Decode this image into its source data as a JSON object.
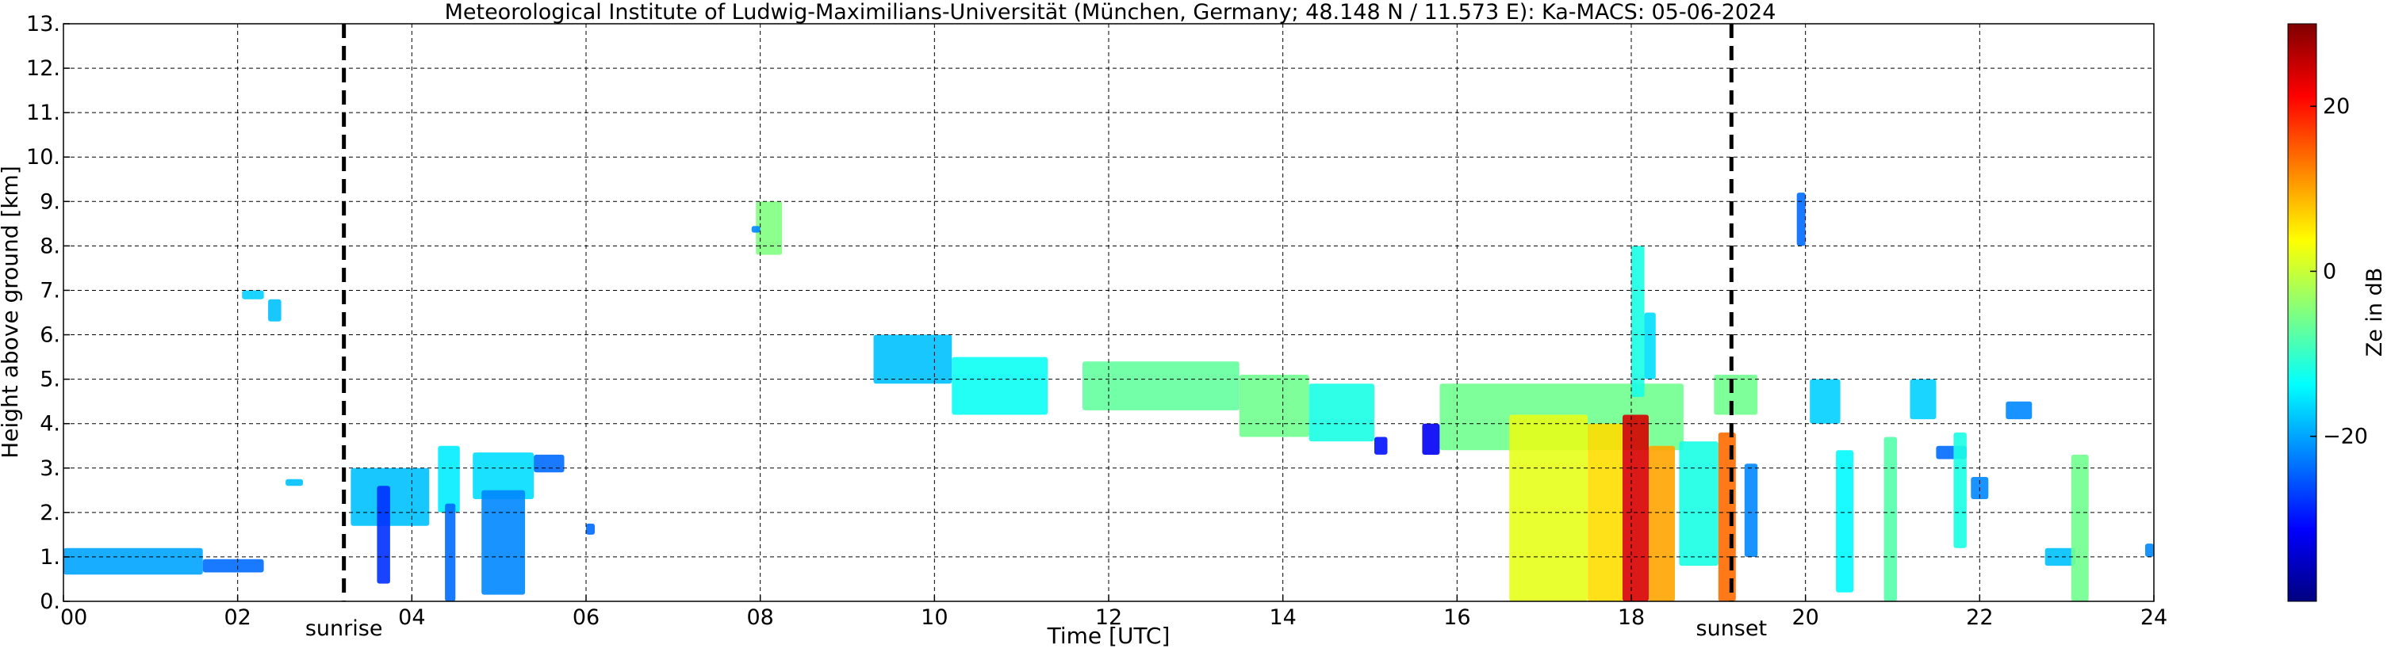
{
  "chart_data": {
    "type": "heatmap",
    "title": "Meteorological Institute of Ludwig-Maximilians-Universität (München, Germany; 48.148 N / 11.573 E):    Ka-MACS: 05-06-2024",
    "xlabel": "Time [UTC]",
    "ylabel": "Height above ground [km]",
    "xlim": [
      0,
      24
    ],
    "ylim": [
      0,
      13
    ],
    "grid": true,
    "x_ticks": [
      "00",
      "02",
      "04",
      "06",
      "08",
      "10",
      "12",
      "14",
      "16",
      "18",
      "20",
      "22",
      "24"
    ],
    "y_ticks": [
      "0.",
      "1.",
      "2.",
      "3.",
      "4.",
      "5.",
      "6.",
      "7.",
      "8.",
      "9.",
      "10.",
      "11.",
      "12.",
      "13."
    ],
    "colorbar": {
      "label": "Ze in dB",
      "range": [
        -40,
        30
      ],
      "ticks": [
        "20",
        "0",
        "−20"
      ],
      "tick_values": [
        20,
        0,
        -20
      ],
      "colormap": [
        "#00007f",
        "#0000ff",
        "#0080ff",
        "#00ffff",
        "#80ff80",
        "#ffff00",
        "#ff8000",
        "#ff0000",
        "#7f0000"
      ]
    },
    "annotations": [
      {
        "label": "sunrise",
        "time": 3.22
      },
      {
        "label": "sunset",
        "time": 19.15
      }
    ],
    "echoes": [
      {
        "t0": 0.0,
        "t1": 1.6,
        "h0": 0.6,
        "h1": 1.2,
        "ze": -20
      },
      {
        "t0": 1.6,
        "t1": 2.3,
        "h0": 0.65,
        "h1": 0.95,
        "ze": -24
      },
      {
        "t0": 2.05,
        "t1": 2.3,
        "h0": 6.8,
        "h1": 7.0,
        "ze": -17
      },
      {
        "t0": 2.35,
        "t1": 2.5,
        "h0": 6.3,
        "h1": 6.8,
        "ze": -18
      },
      {
        "t0": 2.55,
        "t1": 2.75,
        "h0": 2.6,
        "h1": 2.75,
        "ze": -18
      },
      {
        "t0": 3.3,
        "t1": 4.2,
        "h0": 1.7,
        "h1": 3.0,
        "ze": -18
      },
      {
        "t0": 3.6,
        "t1": 3.75,
        "h0": 0.4,
        "h1": 2.6,
        "ze": -28
      },
      {
        "t0": 4.3,
        "t1": 4.55,
        "h0": 2.0,
        "h1": 3.5,
        "ze": -15
      },
      {
        "t0": 4.38,
        "t1": 4.5,
        "h0": 0.0,
        "h1": 2.2,
        "ze": -24
      },
      {
        "t0": 4.7,
        "t1": 5.4,
        "h0": 2.3,
        "h1": 3.35,
        "ze": -16
      },
      {
        "t0": 4.8,
        "t1": 5.3,
        "h0": 0.15,
        "h1": 2.5,
        "ze": -22
      },
      {
        "t0": 5.4,
        "t1": 5.75,
        "h0": 2.9,
        "h1": 3.3,
        "ze": -24
      },
      {
        "t0": 6.0,
        "t1": 6.1,
        "h0": 1.5,
        "h1": 1.75,
        "ze": -24
      },
      {
        "t0": 7.95,
        "t1": 8.25,
        "h0": 7.8,
        "h1": 9.0,
        "ze": -5
      },
      {
        "t0": 7.9,
        "t1": 8.0,
        "h0": 8.3,
        "h1": 8.45,
        "ze": -22
      },
      {
        "t0": 9.3,
        "t1": 10.2,
        "h0": 4.9,
        "h1": 6.0,
        "ze": -18
      },
      {
        "t0": 10.2,
        "t1": 11.3,
        "h0": 4.2,
        "h1": 5.5,
        "ze": -13
      },
      {
        "t0": 11.7,
        "t1": 13.5,
        "h0": 4.3,
        "h1": 5.4,
        "ze": -7
      },
      {
        "t0": 13.5,
        "t1": 14.3,
        "h0": 3.7,
        "h1": 5.1,
        "ze": -6
      },
      {
        "t0": 14.3,
        "t1": 15.05,
        "h0": 3.6,
        "h1": 4.9,
        "ze": -12
      },
      {
        "t0": 15.05,
        "t1": 15.2,
        "h0": 3.3,
        "h1": 3.7,
        "ze": -30
      },
      {
        "t0": 15.6,
        "t1": 15.8,
        "h0": 3.3,
        "h1": 4.0,
        "ze": -32
      },
      {
        "t0": 15.8,
        "t1": 18.6,
        "h0": 3.4,
        "h1": 4.9,
        "ze": -6
      },
      {
        "t0": 16.6,
        "t1": 17.5,
        "h0": 0.0,
        "h1": 4.2,
        "ze": 2
      },
      {
        "t0": 17.5,
        "t1": 17.9,
        "h0": 0.0,
        "h1": 4.0,
        "ze": 6
      },
      {
        "t0": 17.9,
        "t1": 18.2,
        "h0": 0.0,
        "h1": 4.2,
        "ze": 24
      },
      {
        "t0": 18.2,
        "t1": 18.5,
        "h0": 0.0,
        "h1": 3.5,
        "ze": 10
      },
      {
        "t0": 18.0,
        "t1": 18.15,
        "h0": 4.6,
        "h1": 8.0,
        "ze": -12
      },
      {
        "t0": 18.15,
        "t1": 18.28,
        "h0": 5.0,
        "h1": 6.5,
        "ze": -16
      },
      {
        "t0": 18.55,
        "t1": 19.0,
        "h0": 0.8,
        "h1": 3.6,
        "ze": -12
      },
      {
        "t0": 19.0,
        "t1": 19.2,
        "h0": 0.0,
        "h1": 3.8,
        "ze": 14
      },
      {
        "t0": 18.95,
        "t1": 19.45,
        "h0": 4.2,
        "h1": 5.1,
        "ze": -6
      },
      {
        "t0": 19.3,
        "t1": 19.45,
        "h0": 1.0,
        "h1": 3.1,
        "ze": -22
      },
      {
        "t0": 19.9,
        "t1": 20.0,
        "h0": 8.0,
        "h1": 9.2,
        "ze": -24
      },
      {
        "t0": 20.05,
        "t1": 20.4,
        "h0": 4.0,
        "h1": 5.0,
        "ze": -17
      },
      {
        "t0": 20.35,
        "t1": 20.55,
        "h0": 0.2,
        "h1": 3.4,
        "ze": -14
      },
      {
        "t0": 20.9,
        "t1": 21.05,
        "h0": 0.0,
        "h1": 3.7,
        "ze": -8
      },
      {
        "t0": 21.2,
        "t1": 21.5,
        "h0": 4.1,
        "h1": 5.0,
        "ze": -17
      },
      {
        "t0": 21.5,
        "t1": 21.85,
        "h0": 3.2,
        "h1": 3.5,
        "ze": -24
      },
      {
        "t0": 21.7,
        "t1": 21.85,
        "h0": 1.2,
        "h1": 3.8,
        "ze": -12
      },
      {
        "t0": 21.9,
        "t1": 22.1,
        "h0": 2.3,
        "h1": 2.8,
        "ze": -22
      },
      {
        "t0": 22.3,
        "t1": 22.6,
        "h0": 4.1,
        "h1": 4.5,
        "ze": -22
      },
      {
        "t0": 22.75,
        "t1": 23.1,
        "h0": 0.8,
        "h1": 1.2,
        "ze": -18
      },
      {
        "t0": 23.05,
        "t1": 23.25,
        "h0": 0.0,
        "h1": 3.3,
        "ze": -6
      },
      {
        "t0": 23.9,
        "t1": 24.0,
        "h0": 1.0,
        "h1": 1.3,
        "ze": -22
      }
    ]
  }
}
